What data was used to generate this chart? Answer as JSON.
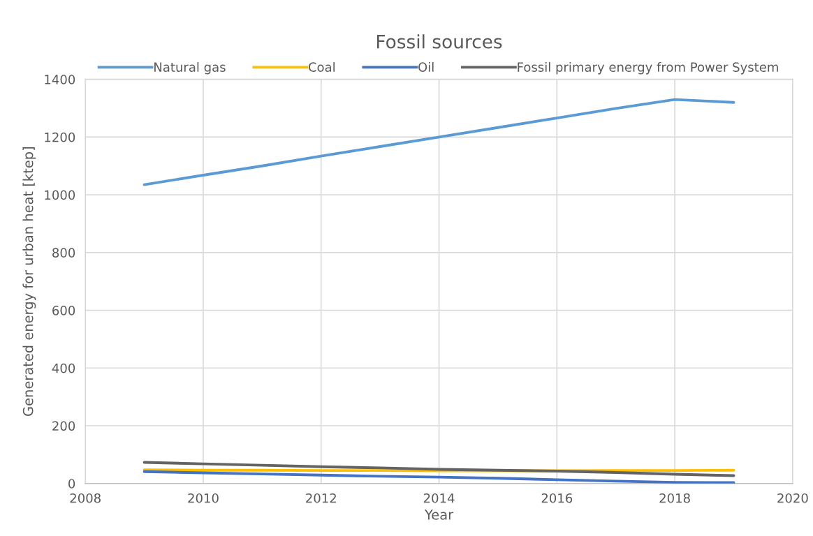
{
  "chart_data": {
    "type": "line",
    "title": "Fossil sources",
    "xlabel": "Year",
    "ylabel": "Generated energy for urban heat [ktep]",
    "x": [
      2009,
      2010,
      2011,
      2012,
      2013,
      2014,
      2015,
      2016,
      2017,
      2018,
      2019
    ],
    "series": [
      {
        "name": "Natural gas",
        "color": "#5b9bd5",
        "values": [
          1035,
          1068,
          1100,
          1134,
          1167,
          1200,
          1233,
          1266,
          1299,
          1330,
          1320
        ]
      },
      {
        "name": "Coal",
        "color": "#ffc000",
        "values": [
          47,
          46,
          46,
          45,
          45,
          44,
          44,
          44,
          45,
          45,
          46
        ]
      },
      {
        "name": "Oil",
        "color": "#4472c4",
        "values": [
          41,
          37,
          33,
          29,
          25,
          22,
          18,
          13,
          8,
          4,
          3
        ]
      },
      {
        "name": "Fossil primary energy from Power System",
        "color": "#636363",
        "values": [
          73,
          68,
          63,
          58,
          54,
          49,
          46,
          43,
          38,
          32,
          27
        ]
      }
    ],
    "xlim": [
      2008,
      2020
    ],
    "xticks": [
      2008,
      2010,
      2012,
      2014,
      2016,
      2018,
      2020
    ],
    "ylim": [
      0,
      1400
    ],
    "yticks": [
      0,
      200,
      400,
      600,
      800,
      1000,
      1200,
      1400
    ],
    "grid": true,
    "legend": "top",
    "marker": "none",
    "line_style": "solid"
  }
}
